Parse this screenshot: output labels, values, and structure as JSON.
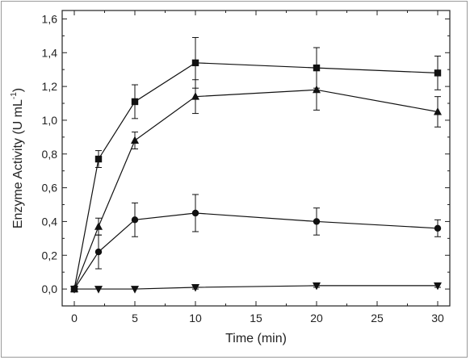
{
  "chart_data": {
    "type": "line",
    "xlabel": "Time (min)",
    "ylabel_main": "Enzyme Activity (U mL",
    "ylabel_sup": "-1",
    "ylabel_close": ")",
    "xlim": [
      -1,
      31
    ],
    "ylim": [
      -0.1,
      1.65
    ],
    "xticks": [
      0,
      5,
      10,
      15,
      20,
      25,
      30
    ],
    "xtick_labels": [
      "0",
      "5",
      "10",
      "15",
      "20",
      "25",
      "30"
    ],
    "yticks": [
      0.0,
      0.2,
      0.4,
      0.6,
      0.8,
      1.0,
      1.2,
      1.4,
      1.6
    ],
    "ytick_labels": [
      "0,0",
      "0,2",
      "0,4",
      "0,6",
      "0,8",
      "1,0",
      "1,2",
      "1,4",
      "1,6"
    ],
    "x": [
      0,
      2,
      5,
      10,
      20,
      30
    ],
    "series": [
      {
        "marker": "square",
        "values": [
          0.0,
          0.77,
          1.11,
          1.34,
          1.31,
          1.28
        ],
        "errors": [
          0.0,
          0.05,
          0.1,
          0.15,
          0.12,
          0.1
        ]
      },
      {
        "marker": "triangle-up",
        "values": [
          0.0,
          0.37,
          0.88,
          1.14,
          1.18,
          1.05
        ],
        "errors": [
          0.0,
          0.05,
          0.05,
          0.1,
          0.12,
          0.09
        ]
      },
      {
        "marker": "circle",
        "values": [
          0.0,
          0.22,
          0.41,
          0.45,
          0.4,
          0.36
        ],
        "errors": [
          0.0,
          0.1,
          0.1,
          0.11,
          0.08,
          0.05
        ]
      },
      {
        "marker": "triangle-down",
        "values": [
          0.0,
          0.0,
          0.0,
          0.01,
          0.02,
          0.02
        ],
        "errors": [
          0.0,
          0.0,
          0.0,
          0.01,
          0.01,
          0.01
        ]
      }
    ],
    "colors": {
      "line": "#111111",
      "axis": "#222222",
      "frame": "#9a9a9a"
    },
    "grid": false
  }
}
